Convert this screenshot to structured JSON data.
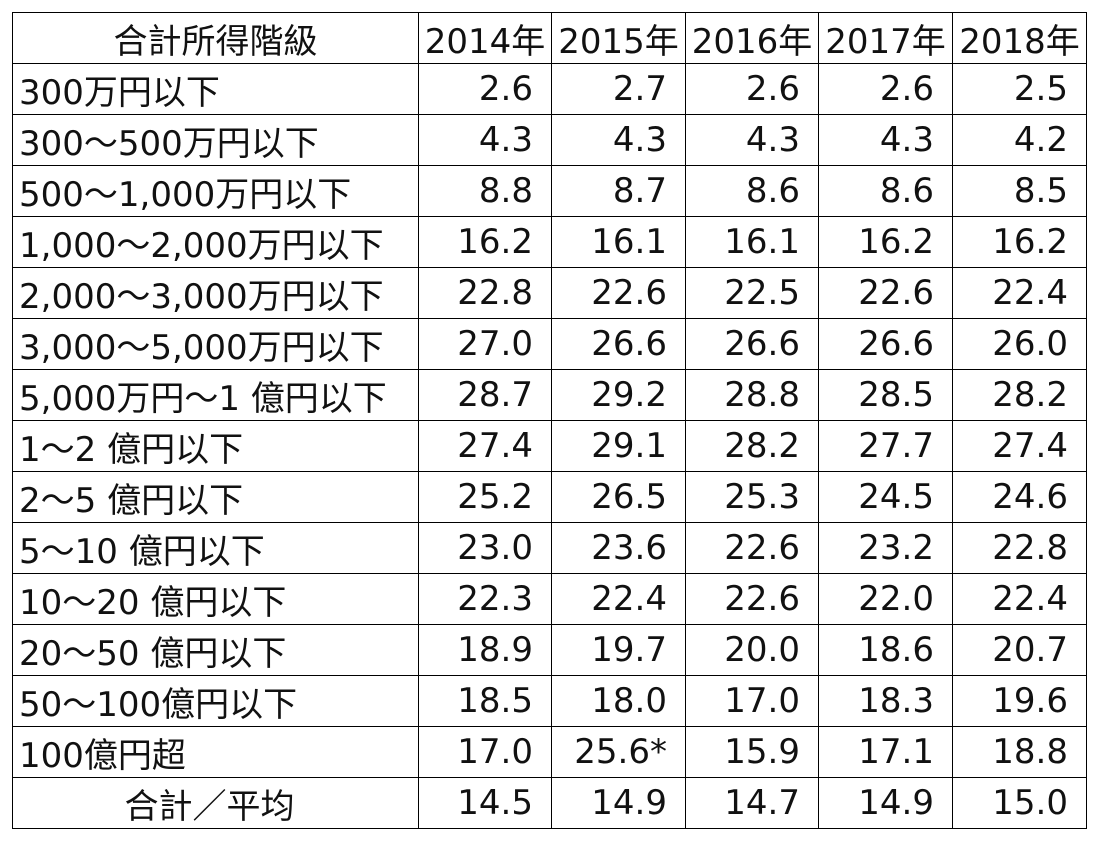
{
  "table": {
    "header": [
      "合計所得階級",
      "2014年",
      "2015年",
      "2016年",
      "2017年",
      "2018年"
    ],
    "rows": [
      [
        "300万円以下",
        "2.6",
        "2.7",
        "2.6",
        "2.6",
        "2.5"
      ],
      [
        "300〜500万円以下",
        "4.3",
        "4.3",
        "4.3",
        "4.3",
        "4.2"
      ],
      [
        "500〜1,000万円以下",
        "8.8",
        "8.7",
        "8.6",
        "8.6",
        "8.5"
      ],
      [
        "1,000〜2,000万円以下",
        "16.2",
        "16.1",
        "16.1",
        "16.2",
        "16.2"
      ],
      [
        "2,000〜3,000万円以下",
        "22.8",
        "22.6",
        "22.5",
        "22.6",
        "22.4"
      ],
      [
        "3,000〜5,000万円以下",
        "27.0",
        "26.6",
        "26.6",
        "26.6",
        "26.0"
      ],
      [
        "5,000万円〜1 億円以下",
        "28.7",
        "29.2",
        "28.8",
        "28.5",
        "28.2"
      ],
      [
        "1〜2 億円以下",
        "27.4",
        "29.1",
        "28.2",
        "27.7",
        "27.4"
      ],
      [
        "2〜5 億円以下",
        "25.2",
        "26.5",
        "25.3",
        "24.5",
        "24.6"
      ],
      [
        "5〜10 億円以下",
        "23.0",
        "23.6",
        "22.6",
        "23.2",
        "22.8"
      ],
      [
        "10〜20 億円以下",
        "22.3",
        "22.4",
        "22.6",
        "22.0",
        "22.4"
      ],
      [
        "20〜50 億円以下",
        "18.9",
        "19.7",
        "20.0",
        "18.6",
        "20.7"
      ],
      [
        "50〜100億円以下",
        "18.5",
        "18.0",
        "17.0",
        "18.3",
        "19.6"
      ],
      [
        "100億円超",
        "17.0",
        "25.6*",
        "15.9",
        "17.1",
        "18.8"
      ],
      [
        "合計／平均",
        "14.5",
        "14.9",
        "14.7",
        "14.9",
        "15.0"
      ]
    ]
  }
}
